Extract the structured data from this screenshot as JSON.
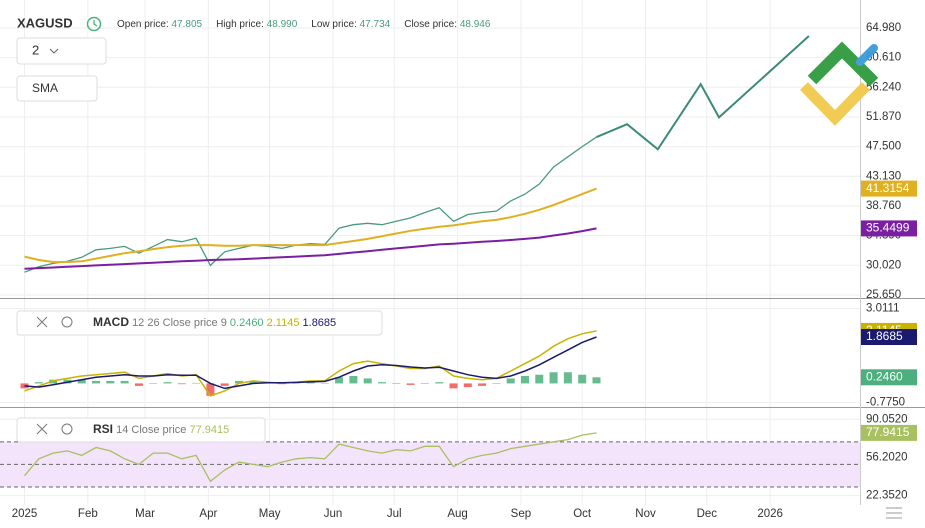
{
  "controls": {
    "interval": "2",
    "indicator": "SMA"
  },
  "chart_data": [
    {
      "type": "line",
      "title": "XAGUSD",
      "ohlc": [
        {
          "name": "Open price:",
          "value": 47.805
        },
        {
          "name": "High price:",
          "value": 48.99,
          "value_label": "48.990"
        },
        {
          "name": "Low price:",
          "value": 47.734
        },
        {
          "name": "Close price:",
          "value": 48.946
        }
      ],
      "ylim": [
        25.2,
        69.1
      ],
      "grid": true,
      "yticks": [
        {
          "value": 64.98,
          "label": "64.980"
        },
        {
          "value": 60.61,
          "label": "60.610"
        },
        {
          "value": 56.24,
          "label": "56.240"
        },
        {
          "value": 51.87,
          "label": "51.870"
        },
        {
          "value": 47.5,
          "label": "47.500"
        },
        {
          "value": 43.13,
          "label": "43.130"
        },
        {
          "value": 38.76,
          "label": "38.760"
        },
        {
          "value": 34.39,
          "label": "34.390"
        },
        {
          "value": 30.02,
          "label": "30.020"
        },
        {
          "value": 25.65,
          "label": "25.650"
        }
      ],
      "x": [
        0,
        7,
        14,
        21,
        28,
        35,
        42,
        49,
        56,
        63,
        70,
        77,
        84,
        91,
        98,
        105,
        112,
        119,
        126,
        133,
        140,
        147,
        154,
        161,
        168,
        175,
        182,
        189,
        196,
        203,
        210,
        217,
        224,
        231,
        238,
        245,
        252,
        259,
        266,
        273,
        280
      ],
      "series": [
        {
          "name": "price",
          "type": "line",
          "color": "#4a9a82",
          "width": 1.3,
          "values": [
            29.0,
            29.8,
            30.3,
            30.6,
            31.2,
            32.3,
            32.5,
            32.8,
            31.8,
            32.8,
            33.8,
            33.5,
            34.0,
            30.0,
            32.0,
            32.5,
            33.0,
            32.8,
            32.5,
            33.0,
            33.2,
            33.1,
            35.5,
            36.0,
            36.2,
            36.0,
            36.5,
            37.0,
            37.8,
            38.5,
            36.5,
            37.5,
            37.8,
            38.0,
            39.5,
            40.5,
            42.0,
            44.5,
            46.0,
            47.5,
            48.9
          ]
        },
        {
          "name": "sma-fast",
          "type": "line",
          "color": "#e0b020",
          "width": 2,
          "badge": true,
          "values": [
            31.3,
            30.8,
            30.5,
            30.5,
            30.6,
            31.0,
            31.4,
            31.8,
            32.1,
            32.4,
            32.7,
            32.9,
            33.0,
            33.0,
            32.9,
            32.9,
            33.0,
            33.0,
            33.0,
            33.0,
            33.0,
            33.0,
            33.3,
            33.6,
            33.9,
            34.3,
            34.7,
            35.1,
            35.4,
            35.7,
            35.9,
            36.2,
            36.5,
            36.7,
            37.1,
            37.6,
            38.2,
            38.9,
            39.7,
            40.5,
            41.3154
          ]
        },
        {
          "name": "sma-slow",
          "type": "line",
          "color": "#7b1fa2",
          "width": 2,
          "badge": true,
          "values": [
            29.5,
            29.6,
            29.7,
            29.8,
            29.9,
            30.0,
            30.1,
            30.2,
            30.3,
            30.4,
            30.5,
            30.6,
            30.7,
            30.8,
            30.85,
            30.9,
            31.0,
            31.1,
            31.2,
            31.3,
            31.4,
            31.5,
            31.7,
            31.9,
            32.1,
            32.3,
            32.5,
            32.7,
            32.9,
            33.1,
            33.2,
            33.35,
            33.5,
            33.6,
            33.75,
            33.9,
            34.1,
            34.4,
            34.7,
            35.05,
            35.4499
          ]
        },
        {
          "name": "forecast",
          "type": "line",
          "color": "#3b8a7a",
          "width": 2,
          "x": [
            280,
            295,
            310,
            331,
            340,
            384
          ],
          "values": [
            48.9,
            50.8,
            47.1,
            56.7,
            51.8,
            63.8
          ]
        }
      ]
    },
    {
      "type": "line",
      "title": "MACD",
      "params": "12 26 Close price 9",
      "ylim": [
        -0.95,
        3.4
      ],
      "grid": true,
      "yticks": [
        {
          "value": 3.0111,
          "label": "3.0111"
        },
        {
          "value": -0.775,
          "label": "-0.7750"
        }
      ],
      "x": [
        0,
        7,
        14,
        21,
        28,
        35,
        42,
        49,
        56,
        63,
        70,
        77,
        84,
        91,
        98,
        105,
        112,
        119,
        126,
        133,
        140,
        147,
        154,
        161,
        168,
        175,
        182,
        189,
        196,
        203,
        210,
        217,
        224,
        231,
        238,
        245,
        252,
        259,
        266,
        273,
        280
      ],
      "series": [
        {
          "name": "histogram",
          "type": "bar",
          "color": "#4caf7d",
          "negative_color": "#ef5350",
          "badge": true,
          "values": [
            -0.2,
            0.05,
            0.15,
            0.15,
            0.15,
            0.1,
            0.1,
            0.1,
            -0.1,
            0,
            0.05,
            -0.03,
            0.02,
            -0.5,
            -0.1,
            0.1,
            0.1,
            0.02,
            -0.03,
            0.01,
            0.04,
            0.02,
            0.25,
            0.3,
            0.2,
            0.05,
            -0.02,
            -0.06,
            -0.02,
            0.05,
            -0.2,
            -0.15,
            -0.1,
            0,
            0.2,
            0.3,
            0.35,
            0.45,
            0.45,
            0.35,
            0.246
          ],
          "value_labels": [
            null,
            null,
            null,
            null,
            null,
            null,
            null,
            null,
            null,
            null,
            null,
            null,
            null,
            null,
            null,
            null,
            null,
            null,
            null,
            null,
            null,
            null,
            null,
            null,
            null,
            null,
            null,
            null,
            null,
            null,
            null,
            null,
            null,
            null,
            null,
            null,
            null,
            null,
            null,
            null,
            "0.2460"
          ]
        },
        {
          "name": "macd",
          "type": "line",
          "color": "#c8b400",
          "width": 1.5,
          "badge": true,
          "values": [
            -0.3,
            -0.1,
            0.1,
            0.2,
            0.3,
            0.35,
            0.4,
            0.45,
            0.2,
            0.3,
            0.4,
            0.3,
            0.35,
            -0.5,
            -0.3,
            0.0,
            0.1,
            0.05,
            0.0,
            0.05,
            0.1,
            0.1,
            0.5,
            0.8,
            0.9,
            0.8,
            0.7,
            0.6,
            0.6,
            0.7,
            0.3,
            0.2,
            0.15,
            0.2,
            0.5,
            0.8,
            1.1,
            1.5,
            1.8,
            2.0,
            2.1145
          ]
        },
        {
          "name": "signal",
          "type": "line",
          "color": "#1a1a6e",
          "width": 1.5,
          "badge": true,
          "values": [
            -0.1,
            -0.15,
            -0.05,
            0.05,
            0.15,
            0.25,
            0.3,
            0.35,
            0.3,
            0.3,
            0.35,
            0.33,
            0.33,
            0.0,
            -0.2,
            -0.1,
            0.0,
            0.03,
            0.03,
            0.04,
            0.06,
            0.08,
            0.25,
            0.5,
            0.7,
            0.75,
            0.72,
            0.66,
            0.62,
            0.65,
            0.5,
            0.35,
            0.25,
            0.2,
            0.3,
            0.5,
            0.75,
            1.05,
            1.35,
            1.65,
            1.8685
          ]
        }
      ]
    },
    {
      "type": "line",
      "title": "RSI",
      "params": "14 Close price",
      "ylim": [
        14,
        100
      ],
      "grid": true,
      "levels": [
        70,
        50,
        30
      ],
      "band_color": "#f3e4fb",
      "yticks": [
        {
          "value": 90.052,
          "label": "90.0520"
        },
        {
          "value": 56.202,
          "label": "56.2020"
        },
        {
          "value": 22.352,
          "label": "22.3520"
        }
      ],
      "xlim": [
        -12,
        409
      ],
      "xticks": [
        {
          "value": 0,
          "label": "2025"
        },
        {
          "value": 31,
          "label": "Feb"
        },
        {
          "value": 59,
          "label": "Mar"
        },
        {
          "value": 90,
          "label": "Apr"
        },
        {
          "value": 120,
          "label": "May"
        },
        {
          "value": 151,
          "label": "Jun"
        },
        {
          "value": 181,
          "label": "Jul"
        },
        {
          "value": 212,
          "label": "Aug"
        },
        {
          "value": 243,
          "label": "Sep"
        },
        {
          "value": 273,
          "label": "Oct"
        },
        {
          "value": 304,
          "label": "Nov"
        },
        {
          "value": 334,
          "label": "Dec"
        },
        {
          "value": 365,
          "label": "2026"
        }
      ],
      "x": [
        0,
        7,
        14,
        21,
        28,
        35,
        42,
        49,
        56,
        63,
        70,
        77,
        84,
        91,
        98,
        105,
        112,
        119,
        126,
        133,
        140,
        147,
        154,
        161,
        168,
        175,
        182,
        189,
        196,
        203,
        210,
        217,
        224,
        231,
        238,
        245,
        252,
        259,
        266,
        273,
        280
      ],
      "series": [
        {
          "name": "rsi",
          "type": "line",
          "color": "#a8c060",
          "width": 1.3,
          "badge": true,
          "values": [
            40,
            55,
            60,
            62,
            58,
            65,
            62,
            55,
            50,
            60,
            60,
            55,
            58,
            35,
            45,
            52,
            50,
            48,
            52,
            55,
            56,
            55,
            68,
            65,
            62,
            60,
            63,
            62,
            66,
            66,
            48,
            55,
            58,
            60,
            64,
            66,
            68,
            70,
            72,
            76,
            77.9415
          ]
        }
      ]
    }
  ]
}
